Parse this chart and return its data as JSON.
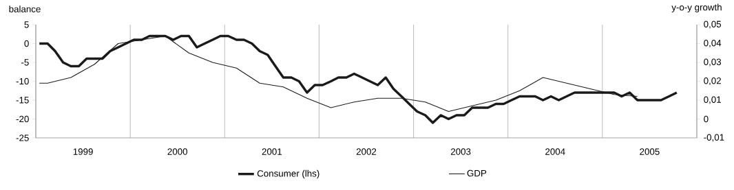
{
  "chart_data": {
    "type": "line",
    "ylabel": "balance",
    "y2label": "y-o-y growth",
    "xlim": [
      "1999-01-01",
      "2006-01-01"
    ],
    "xticks": [
      {
        "value": "1999-01-01",
        "label": null
      },
      {
        "value": "1999-07-01",
        "label": "1999"
      },
      {
        "value": "2000-01-01",
        "label": null
      },
      {
        "value": "2000-07-01",
        "label": "2000"
      },
      {
        "value": "2001-01-01",
        "label": null
      },
      {
        "value": "2001-07-01",
        "label": "2001"
      },
      {
        "value": "2002-01-01",
        "label": null
      },
      {
        "value": "2002-07-01",
        "label": "2002"
      },
      {
        "value": "2003-01-01",
        "label": null
      },
      {
        "value": "2003-07-01",
        "label": "2003"
      },
      {
        "value": "2004-01-01",
        "label": null
      },
      {
        "value": "2004-07-01",
        "label": "2004"
      },
      {
        "value": "2005-01-01",
        "label": null
      },
      {
        "value": "2005-07-01",
        "label": "2005"
      },
      {
        "value": "2006-01-01",
        "label": null
      }
    ],
    "ylim": [
      -25,
      5
    ],
    "yticks": [
      -25,
      -20,
      -15,
      -10,
      -5,
      0,
      5
    ],
    "y2lim": [
      -0.01,
      0.05
    ],
    "y2ticks": [
      {
        "value": -0.01,
        "label": "-0,01"
      },
      0,
      {
        "value": 0.01,
        "label": "0,01"
      },
      {
        "value": 0.02,
        "label": "0,02"
      },
      {
        "value": 0.03,
        "label": "0,03"
      },
      {
        "value": 0.04,
        "label": "0,04"
      },
      {
        "value": 0.05,
        "label": "0,05"
      }
    ],
    "grid": "x",
    "legend": "bottom",
    "marker": "none",
    "line_style": "solid",
    "series": [
      {
        "name": "Consumer (lhs)",
        "color": "#1a1a1a",
        "x": [
          "1999-01-15",
          "1999-02-15",
          "1999-03-15",
          "1999-04-15",
          "1999-05-15",
          "1999-06-15",
          "1999-07-15",
          "1999-08-15",
          "1999-09-15",
          "1999-10-15",
          "1999-11-15",
          "1999-12-15",
          "2000-01-15",
          "2000-02-15",
          "2000-03-15",
          "2000-04-15",
          "2000-05-15",
          "2000-06-15",
          "2000-07-15",
          "2000-08-15",
          "2000-09-15",
          "2000-10-15",
          "2000-11-15",
          "2000-12-15",
          "2001-01-15",
          "2001-02-15",
          "2001-03-15",
          "2001-04-15",
          "2001-05-15",
          "2001-06-15",
          "2001-07-15",
          "2001-08-15",
          "2001-09-15",
          "2001-10-15",
          "2001-11-15",
          "2001-12-15",
          "2002-01-15",
          "2002-02-15",
          "2002-03-15",
          "2002-04-15",
          "2002-05-15",
          "2002-06-15",
          "2002-07-15",
          "2002-08-15",
          "2002-09-15",
          "2002-10-15",
          "2002-11-15",
          "2002-12-15",
          "2003-01-15",
          "2003-02-15",
          "2003-03-15",
          "2003-04-15",
          "2003-05-15",
          "2003-06-15",
          "2003-07-15",
          "2003-08-15",
          "2003-09-15",
          "2003-10-15",
          "2003-11-15",
          "2003-12-15",
          "2004-01-15",
          "2004-02-15",
          "2004-03-15",
          "2004-04-15",
          "2004-05-15",
          "2004-06-15",
          "2004-07-15",
          "2004-08-15",
          "2004-09-15",
          "2004-10-15",
          "2004-11-15",
          "2004-12-15",
          "2005-01-15",
          "2005-02-15",
          "2005-03-15",
          "2005-04-15",
          "2005-05-15",
          "2005-06-15",
          "2005-07-15",
          "2005-08-15",
          "2005-09-15",
          "2005-10-15"
        ],
        "values": [
          0,
          0,
          -2,
          -5,
          -6,
          -6,
          -4,
          -4,
          -4,
          -2,
          -1,
          0,
          1,
          1,
          2,
          2,
          2,
          1,
          2,
          2,
          -1,
          0,
          1,
          2,
          2,
          1,
          1,
          0,
          -2,
          -3,
          -6,
          -9,
          -9,
          -10,
          -13,
          -11,
          -11,
          -10,
          -9,
          -9,
          -8,
          -9,
          -10,
          -11,
          -9,
          -12,
          -14,
          -16,
          -18,
          -19,
          -21,
          -19,
          -20,
          -19,
          -19,
          -17,
          -17,
          -17,
          -16,
          -16,
          -15,
          -14,
          -14,
          -14,
          -15,
          -14,
          -15,
          -14,
          -13,
          -13,
          -13,
          -13,
          -13,
          -13,
          -14,
          -13,
          -15,
          -15,
          -15,
          -15,
          -14,
          -13
        ]
      },
      {
        "name": "GDP",
        "color": "#1a1a1a",
        "axis": "y2",
        "x": [
          "1999-01-15",
          "1999-02-15",
          "1999-05-15",
          "1999-08-15",
          "1999-11-15",
          "2000-02-15",
          "2000-05-15",
          "2000-08-15",
          "2000-11-15",
          "2001-02-15",
          "2001-05-15",
          "2001-08-15",
          "2001-11-15",
          "2002-02-15",
          "2002-05-15",
          "2002-08-15",
          "2002-11-15",
          "2003-02-15",
          "2003-05-15",
          "2003-08-15",
          "2003-11-15",
          "2004-02-15",
          "2004-05-15",
          "2004-08-15",
          "2004-11-15",
          "2005-02-15",
          "2005-05-15"
        ],
        "values": [
          0.019,
          0.019,
          0.022,
          0.029,
          0.04,
          0.042,
          0.044,
          0.035,
          0.03,
          0.027,
          0.019,
          0.017,
          0.011,
          0.006,
          0.009,
          0.011,
          0.011,
          0.009,
          0.004,
          0.007,
          0.01,
          0.015,
          0.022,
          0.019,
          0.016,
          0.013,
          0.012
        ]
      }
    ]
  }
}
